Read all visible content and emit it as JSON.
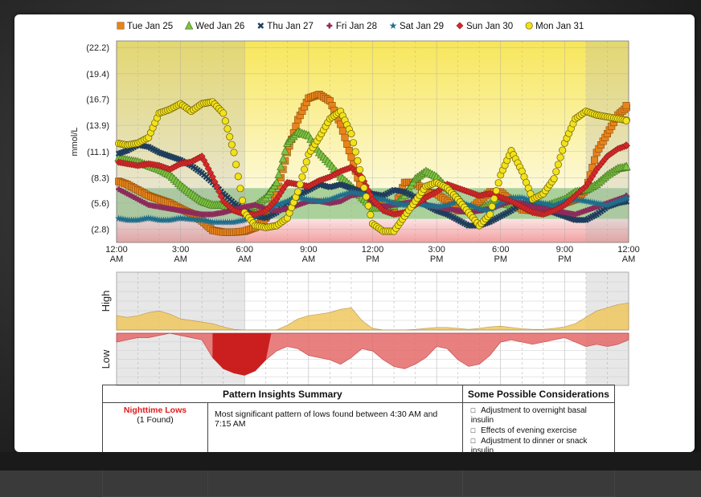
{
  "chart_data": [
    {
      "type": "scatter",
      "title": "",
      "ylabel": "mmol/L",
      "xlabel": "",
      "yticks": [
        "(22.2)",
        "(19.4)",
        "(16.7)",
        "(13.9)",
        "(11.1)",
        "(8.3)",
        "(5.6)",
        "(2.8)"
      ],
      "ytick_values": [
        22.2,
        19.4,
        16.7,
        13.9,
        11.1,
        8.3,
        5.6,
        2.8
      ],
      "xticks": [
        {
          "top": "12:00",
          "bottom": "AM"
        },
        {
          "top": "3:00",
          "bottom": "AM"
        },
        {
          "top": "6:00",
          "bottom": "AM"
        },
        {
          "top": "9:00",
          "bottom": "AM"
        },
        {
          "top": "12:00",
          "bottom": "PM"
        },
        {
          "top": "3:00",
          "bottom": "PM"
        },
        {
          "top": "6:00",
          "bottom": "PM"
        },
        {
          "top": "9:00",
          "bottom": "PM"
        },
        {
          "top": "12:00",
          "bottom": "AM"
        }
      ],
      "ylim": [
        1.4,
        22.9
      ],
      "xlim_hours": [
        0,
        24
      ],
      "target_range": [
        3.9,
        7.2
      ],
      "night_shading_hours": [
        [
          0,
          6
        ],
        [
          22,
          24
        ]
      ],
      "grid": true,
      "legend_position": "top",
      "series": [
        {
          "name": "Tue Jan 25",
          "marker": "square",
          "color": "#e8841c",
          "x": [
            0,
            0.5,
            1,
            1.5,
            2,
            2.5,
            3,
            3.5,
            4,
            4.5,
            5,
            5.5,
            6,
            6.5,
            7,
            7.5,
            8,
            8.5,
            9,
            9.5,
            10,
            10.5,
            11,
            11.5,
            12,
            12.5,
            13,
            13.5,
            14,
            14.5,
            15,
            15.5,
            16,
            16.5,
            17,
            17.5,
            18,
            18.5,
            19,
            19.5,
            20,
            20.5,
            21,
            21.5,
            22,
            22.5,
            23,
            23.5,
            24
          ],
          "y": [
            8.0,
            7.6,
            7.0,
            6.4,
            6.0,
            5.6,
            5.0,
            4.5,
            3.7,
            2.7,
            2.5,
            2.5,
            2.6,
            3.0,
            4.0,
            6.5,
            11.0,
            14.5,
            16.8,
            17.2,
            16.5,
            14.0,
            10.5,
            6.8,
            5.8,
            5.2,
            5.0,
            7.8,
            7.8,
            6.8,
            6.6,
            5.8,
            4.8,
            4.8,
            5.8,
            6.8,
            6.8,
            5.8,
            4.9,
            4.8,
            4.8,
            5.0,
            5.6,
            6.0,
            7.0,
            11.0,
            13.0,
            15.0,
            16.0
          ]
        },
        {
          "name": "Wed Jan 26",
          "marker": "triangle",
          "color": "#7dc242",
          "x": [
            0,
            0.5,
            1,
            1.5,
            2,
            2.5,
            3,
            3.5,
            4,
            4.5,
            5,
            5.5,
            6,
            6.5,
            7,
            7.5,
            8,
            8.5,
            9,
            9.5,
            10,
            10.5,
            11,
            11.5,
            12,
            12.5,
            13,
            13.5,
            14,
            14.5,
            15,
            15.5,
            16,
            16.5,
            17,
            17.5,
            18,
            18.5,
            19,
            19.5,
            20,
            20.5,
            21,
            21.5,
            22,
            22.5,
            23,
            23.5,
            24
          ],
          "y": [
            10.5,
            10.2,
            10.0,
            9.6,
            9.2,
            8.6,
            7.5,
            6.6,
            5.8,
            5.4,
            5.4,
            5.0,
            4.8,
            5.3,
            6.2,
            7.8,
            12.0,
            13.2,
            12.8,
            11.0,
            9.8,
            8.4,
            7.4,
            6.2,
            5.1,
            5.1,
            5.3,
            6.4,
            8.2,
            9.0,
            8.4,
            7.2,
            6.2,
            4.8,
            4.9,
            5.5,
            5.6,
            5.4,
            5.4,
            5.0,
            5.2,
            5.6,
            6.0,
            6.8,
            7.0,
            7.6,
            8.6,
            9.3,
            9.5
          ]
        },
        {
          "name": "Thu Jan 27",
          "marker": "x",
          "color": "#1f3d5c",
          "x": [
            0,
            0.5,
            1,
            1.5,
            2,
            2.5,
            3,
            3.5,
            4,
            4.5,
            5,
            5.5,
            6,
            6.5,
            7,
            7.5,
            8,
            8.5,
            9,
            9.5,
            10,
            10.5,
            11,
            11.5,
            12,
            12.5,
            13,
            13.5,
            14,
            14.5,
            15,
            15.5,
            16,
            16.5,
            17,
            17.5,
            18,
            18.5,
            19,
            19.5,
            20,
            20.5,
            21,
            21.5,
            22,
            22.5,
            23,
            23.5,
            24
          ],
          "y": [
            10.8,
            11.2,
            11.8,
            11.6,
            11.0,
            10.6,
            10.2,
            9.6,
            8.8,
            7.8,
            6.6,
            5.6,
            4.8,
            4.2,
            4.0,
            4.6,
            5.6,
            6.4,
            7.0,
            7.6,
            7.3,
            7.6,
            7.2,
            6.8,
            6.6,
            6.4,
            7.0,
            6.8,
            6.2,
            5.4,
            4.8,
            4.4,
            3.8,
            3.2,
            3.2,
            3.6,
            4.2,
            4.8,
            5.6,
            5.4,
            5.2,
            4.6,
            4.2,
            3.8,
            3.8,
            4.4,
            5.2,
            5.6,
            5.8
          ]
        },
        {
          "name": "Fri Jan 28",
          "marker": "plus",
          "color": "#8c2a5a",
          "x": [
            0,
            0.5,
            1,
            1.5,
            2,
            2.5,
            3,
            3.5,
            4,
            4.5,
            5,
            5.5,
            6,
            6.5,
            7,
            7.5,
            8,
            8.5,
            9,
            9.5,
            10,
            10.5,
            11,
            11.5,
            12,
            12.5,
            13,
            13.5,
            14,
            14.5,
            15,
            15.5,
            16,
            16.5,
            17,
            17.5,
            18,
            18.5,
            19,
            19.5,
            20,
            20.5,
            21,
            21.5,
            22,
            22.5,
            23,
            23.5,
            24
          ],
          "y": [
            7.2,
            6.6,
            6.0,
            5.4,
            5.2,
            5.0,
            4.8,
            4.6,
            4.4,
            4.4,
            4.6,
            4.9,
            5.2,
            5.4,
            5.0,
            4.8,
            5.0,
            5.4,
            5.8,
            5.8,
            5.6,
            5.8,
            6.4,
            6.6,
            5.6,
            5.2,
            5.4,
            5.6,
            5.8,
            5.4,
            5.2,
            5.0,
            4.8,
            4.6,
            4.8,
            5.0,
            5.4,
            5.8,
            5.6,
            5.2,
            5.0,
            4.8,
            4.6,
            4.4,
            4.8,
            5.2,
            5.6,
            6.0,
            6.4
          ]
        },
        {
          "name": "Sat Jan 29",
          "marker": "star",
          "color": "#1f6f8b",
          "x": [
            0,
            0.5,
            1,
            1.5,
            2,
            2.5,
            3,
            3.5,
            4,
            4.5,
            5,
            5.5,
            6,
            6.5,
            7,
            7.5,
            8,
            8.5,
            9,
            9.5,
            10,
            10.5,
            11,
            11.5,
            12,
            12.5,
            13,
            13.5,
            14,
            14.5,
            15,
            15.5,
            16,
            16.5,
            17,
            17.5,
            18,
            18.5,
            19,
            19.5,
            20,
            20.5,
            21,
            21.5,
            22,
            22.5,
            23,
            23.5,
            24
          ],
          "y": [
            4.0,
            3.8,
            3.8,
            4.0,
            3.8,
            3.8,
            4.0,
            3.9,
            3.8,
            3.6,
            3.6,
            3.6,
            3.8,
            4.2,
            4.8,
            5.4,
            5.8,
            6.2,
            6.0,
            5.8,
            6.0,
            6.4,
            6.8,
            6.6,
            6.2,
            6.0,
            5.6,
            5.4,
            5.6,
            5.4,
            5.2,
            5.4,
            5.8,
            5.4,
            5.0,
            4.8,
            5.6,
            6.2,
            6.2,
            5.8,
            5.6,
            5.4,
            5.8,
            6.0,
            5.8,
            5.6,
            5.4,
            5.8,
            6.2
          ]
        },
        {
          "name": "Sun Jan 30",
          "marker": "diamond",
          "color": "#d12a2a",
          "x": [
            0,
            0.5,
            1,
            1.5,
            2,
            2.5,
            3,
            3.5,
            4,
            4.5,
            5,
            5.5,
            6,
            6.5,
            7,
            7.5,
            8,
            8.5,
            9,
            9.5,
            10,
            10.5,
            11,
            11.5,
            12,
            12.5,
            13,
            13.5,
            14,
            14.5,
            15,
            15.5,
            16,
            16.5,
            17,
            17.5,
            18,
            18.5,
            19,
            19.5,
            20,
            20.5,
            21,
            21.5,
            22,
            22.5,
            23,
            23.5,
            24
          ],
          "y": [
            10.0,
            9.8,
            9.6,
            9.8,
            9.6,
            9.2,
            9.8,
            10.0,
            10.6,
            8.4,
            5.8,
            4.8,
            4.4,
            4.4,
            4.8,
            6.0,
            7.8,
            7.6,
            7.4,
            8.0,
            8.4,
            9.0,
            9.4,
            8.4,
            6.0,
            4.8,
            4.4,
            4.6,
            5.4,
            6.2,
            6.8,
            7.6,
            7.2,
            6.8,
            6.4,
            6.6,
            6.2,
            5.8,
            5.2,
            4.6,
            4.4,
            4.8,
            5.4,
            6.4,
            7.4,
            9.2,
            10.6,
            11.4,
            11.8
          ]
        },
        {
          "name": "Mon Jan 31",
          "marker": "circle",
          "color": "#f2e21a",
          "x": [
            0,
            0.5,
            1,
            1.5,
            2,
            2.5,
            3,
            3.5,
            4,
            4.5,
            5,
            5.5,
            6,
            6.5,
            7,
            7.5,
            8,
            8.5,
            9,
            9.5,
            10,
            10.5,
            11,
            11.5,
            12,
            12.5,
            13,
            13.5,
            14,
            14.5,
            15,
            15.5,
            16,
            16.5,
            17,
            17.5,
            18,
            18.5,
            19,
            19.5,
            20,
            20.5,
            21,
            21.5,
            22,
            22.5,
            23,
            23.5,
            24
          ],
          "y": [
            12.0,
            11.8,
            12.0,
            12.6,
            15.2,
            15.6,
            16.2,
            15.4,
            16.2,
            16.4,
            15.2,
            11.0,
            4.6,
            3.2,
            3.0,
            3.2,
            4.0,
            6.8,
            10.8,
            12.6,
            14.6,
            15.4,
            13.0,
            8.2,
            3.4,
            2.6,
            2.6,
            4.2,
            5.8,
            7.4,
            7.8,
            7.2,
            6.0,
            4.6,
            3.2,
            4.4,
            8.6,
            11.2,
            9.0,
            6.0,
            6.6,
            8.2,
            12.0,
            14.6,
            15.4,
            15.0,
            14.8,
            14.6,
            14.4
          ]
        }
      ]
    },
    {
      "type": "area",
      "title": "",
      "panel_labels": {
        "high": "High",
        "low": "Low"
      },
      "x_hours": [
        0,
        0.5,
        1,
        1.5,
        2,
        2.5,
        3,
        3.5,
        4,
        4.5,
        5,
        5.5,
        6,
        6.5,
        7,
        7.5,
        8,
        8.5,
        9,
        9.5,
        10,
        10.5,
        11,
        11.5,
        12,
        12.5,
        13,
        13.5,
        14,
        14.5,
        15,
        15.5,
        16,
        16.5,
        17,
        17.5,
        18,
        18.5,
        19,
        19.5,
        20,
        20.5,
        21,
        21.5,
        22,
        22.5,
        23,
        23.5,
        24
      ],
      "high_values": [
        0.45,
        0.4,
        0.45,
        0.55,
        0.6,
        0.5,
        0.35,
        0.3,
        0.25,
        0.2,
        0.1,
        0.02,
        0,
        0,
        0,
        0,
        0.15,
        0.35,
        0.45,
        0.5,
        0.55,
        0.65,
        0.7,
        0.3,
        0.05,
        0,
        0,
        0,
        0.02,
        0.05,
        0.08,
        0.08,
        0.05,
        0.02,
        0.05,
        0.1,
        0.12,
        0.08,
        0.04,
        0.02,
        0.02,
        0.05,
        0.1,
        0.2,
        0.4,
        0.6,
        0.7,
        0.8,
        0.85
      ],
      "low_values": [
        0.2,
        0.15,
        0.1,
        0.1,
        0.05,
        0,
        0.05,
        0.1,
        0.15,
        0.55,
        0.8,
        0.9,
        0.95,
        0.85,
        0.6,
        0.4,
        0.3,
        0.35,
        0.5,
        0.55,
        0.6,
        0.7,
        0.55,
        0.35,
        0.4,
        0.6,
        0.75,
        0.8,
        0.7,
        0.55,
        0.3,
        0.35,
        0.6,
        0.75,
        0.7,
        0.5,
        0.2,
        0.15,
        0.2,
        0.25,
        0.2,
        0.15,
        0.1,
        0.2,
        0.3,
        0.25,
        0.3,
        0.25,
        0.15
      ]
    }
  ],
  "colors": {
    "high_fill": "#f0c860",
    "low_fill": "#e56b6b",
    "low_significant": "#c81414",
    "target_band": "#8fc27a",
    "above_target": "#f7e65a",
    "below_target": "#f2a0a0",
    "night_shade": "#b0b0b0"
  },
  "summary_table": {
    "header_left": "Pattern Insights Summary",
    "header_right": "Some Possible Considerations",
    "rows": [
      {
        "pattern_name": "Nighttime Lows",
        "pattern_count": "(1 Found)",
        "description": "Most significant pattern of lows found between 4:30 AM and 7:15 AM",
        "considerations": [
          "Adjustment to overnight basal insulin",
          "Effects of evening exercise",
          "Adjustment to dinner or snack insulin"
        ]
      }
    ]
  }
}
